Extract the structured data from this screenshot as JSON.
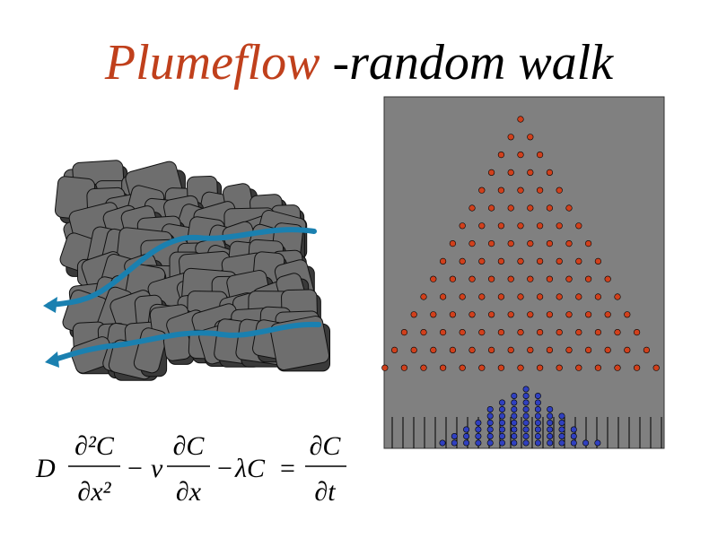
{
  "header": {
    "title_highlight": "Plumeflow",
    "title_rest": "-random walk"
  },
  "equation": {
    "coefficient": "D",
    "term1_numerator": "∂²C",
    "term1_denominator": "∂x²",
    "minus1": "−",
    "velocity": "v",
    "term2_numerator": "∂C",
    "term2_denominator": "∂x",
    "minus2": "−",
    "decay": "λC",
    "equals": "=",
    "rhs_numerator": "∂C",
    "rhs_denominator": "∂t"
  }
}
